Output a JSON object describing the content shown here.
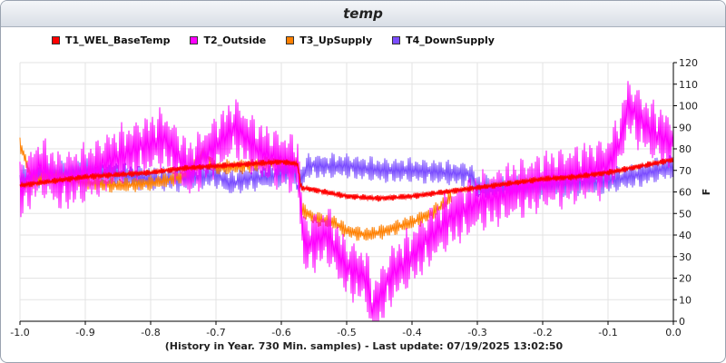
{
  "window": {
    "title": "temp"
  },
  "footer": {
    "text": "(History in Year. 730 Min. samples) - Last update: 07/19/2025 13:02:50"
  },
  "chart_data": {
    "type": "line",
    "title": "temp",
    "xlabel": "",
    "ylabel": "F",
    "xlim": [
      -1.0,
      0.0
    ],
    "ylim": [
      0,
      120
    ],
    "x_ticks": [
      "-1.0",
      "-0.9",
      "-0.8",
      "-0.7",
      "-0.6",
      "-0.5",
      "-0.4",
      "-0.3",
      "-0.2",
      "-0.1",
      "0.0"
    ],
    "y_ticks": [
      "0",
      "10",
      "20",
      "30",
      "40",
      "50",
      "60",
      "70",
      "80",
      "90",
      "100",
      "110",
      "120"
    ],
    "grid": true,
    "legend_position": "top",
    "series": [
      {
        "name": "T1_WEL_BaseTemp",
        "color": "#ff0000",
        "x": [
          -1.0,
          -0.95,
          -0.9,
          -0.85,
          -0.8,
          -0.75,
          -0.7,
          -0.65,
          -0.6,
          -0.575,
          -0.57,
          -0.55,
          -0.5,
          -0.45,
          -0.4,
          -0.35,
          -0.3,
          -0.25,
          -0.2,
          -0.15,
          -0.1,
          -0.05,
          0.0
        ],
        "values": [
          63,
          65,
          67,
          68,
          69,
          71,
          72,
          73,
          74,
          73,
          62,
          61,
          58,
          57,
          58,
          60,
          62,
          64,
          66,
          67,
          69,
          72,
          75
        ]
      },
      {
        "name": "T2_Outside",
        "color": "#ff00ff",
        "x": [
          -1.0,
          -0.97,
          -0.94,
          -0.9,
          -0.86,
          -0.82,
          -0.78,
          -0.74,
          -0.7,
          -0.67,
          -0.63,
          -0.6,
          -0.575,
          -0.565,
          -0.53,
          -0.5,
          -0.47,
          -0.46,
          -0.43,
          -0.4,
          -0.37,
          -0.34,
          -0.3,
          -0.25,
          -0.2,
          -0.15,
          -0.1,
          -0.08,
          -0.07,
          -0.04,
          0.0
        ],
        "values": [
          60,
          72,
          65,
          68,
          75,
          80,
          85,
          70,
          82,
          90,
          78,
          75,
          72,
          35,
          40,
          25,
          20,
          5,
          22,
          30,
          40,
          48,
          55,
          60,
          65,
          68,
          72,
          85,
          100,
          90,
          82
        ]
      },
      {
        "name": "T3_UpSupply",
        "color": "#ff8000",
        "x": [
          -1.0,
          -0.98,
          -0.95,
          -0.9,
          -0.85,
          -0.8,
          -0.75,
          -0.72,
          -0.7,
          -0.65,
          -0.6,
          -0.575,
          -0.57,
          -0.55,
          -0.52,
          -0.5,
          -0.47,
          -0.44,
          -0.42,
          -0.4,
          -0.37,
          -0.35,
          -0.34
        ],
        "values": [
          82,
          65,
          68,
          64,
          63,
          64,
          67,
          78,
          71,
          72,
          74,
          73,
          52,
          48,
          46,
          42,
          40,
          42,
          44,
          46,
          50,
          55,
          58
        ]
      },
      {
        "name": "T4_DownSupply",
        "color": "#7b4dff",
        "x": [
          -1.0,
          -0.95,
          -0.9,
          -0.85,
          -0.8,
          -0.75,
          -0.7,
          -0.68,
          -0.65,
          -0.6,
          -0.58,
          -0.575,
          -0.56,
          -0.5,
          -0.45,
          -0.4,
          -0.35,
          -0.31,
          -0.3,
          -0.25,
          -0.2,
          -0.15,
          -0.1,
          -0.05,
          0.0
        ],
        "values": [
          66,
          68,
          70,
          68,
          66,
          66,
          68,
          64,
          66,
          68,
          70,
          62,
          72,
          72,
          70,
          70,
          69,
          68,
          62,
          62,
          63,
          64,
          65,
          68,
          72
        ]
      }
    ]
  }
}
